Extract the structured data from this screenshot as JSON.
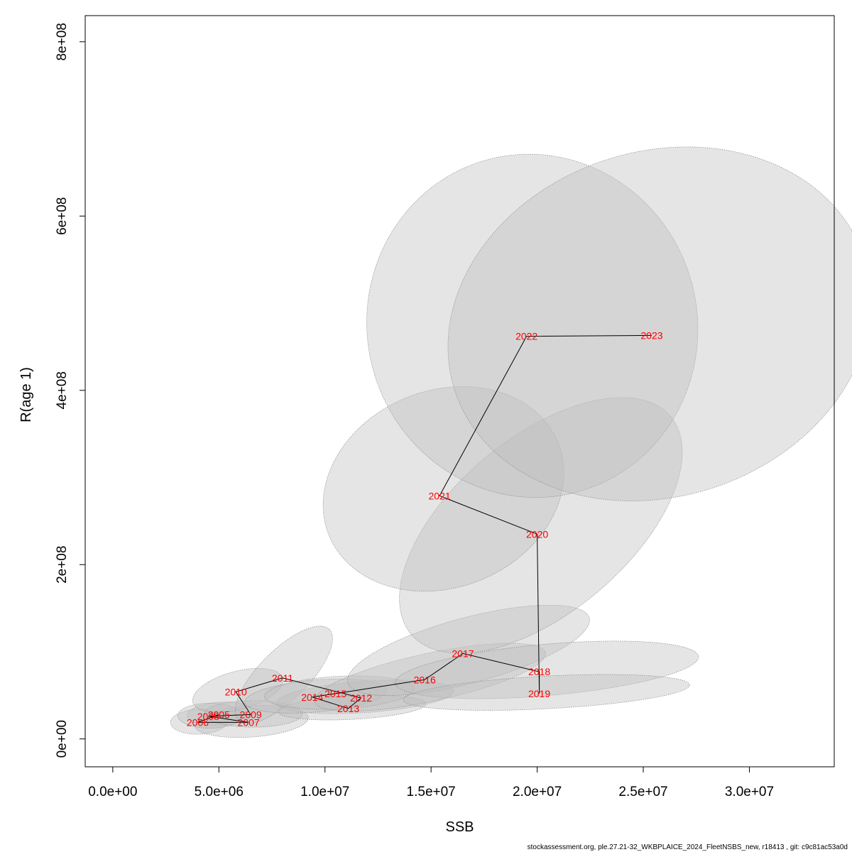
{
  "chart_data": {
    "type": "scatter",
    "xlabel": "SSB",
    "ylabel": "R(age 1)",
    "xlim": [
      -1300000,
      34000000
    ],
    "ylim": [
      -32000000,
      830000000
    ],
    "x_ticks": [
      {
        "value": 0,
        "label": "0.0e+00"
      },
      {
        "value": 5000000,
        "label": "5.0e+06"
      },
      {
        "value": 10000000,
        "label": "1.0e+07"
      },
      {
        "value": 15000000,
        "label": "1.5e+07"
      },
      {
        "value": 20000000,
        "label": "2.0e+07"
      },
      {
        "value": 25000000,
        "label": "2.5e+07"
      },
      {
        "value": 30000000,
        "label": "3.0e+07"
      }
    ],
    "y_ticks": [
      {
        "value": 0,
        "label": "0e+00"
      },
      {
        "value": 200000000,
        "label": "2e+08"
      },
      {
        "value": 400000000,
        "label": "4e+08"
      },
      {
        "value": 600000000,
        "label": "6e+08"
      },
      {
        "value": 800000000,
        "label": "8e+08"
      }
    ],
    "points": [
      {
        "year": "2005",
        "x": 5000000,
        "y": 28000000
      },
      {
        "year": "2006",
        "x": 4000000,
        "y": 19000000
      },
      {
        "year": "2007",
        "x": 6400000,
        "y": 19000000
      },
      {
        "year": "2008",
        "x": 4500000,
        "y": 26000000
      },
      {
        "year": "2009",
        "x": 6500000,
        "y": 28000000
      },
      {
        "year": "2010",
        "x": 5800000,
        "y": 54000000
      },
      {
        "year": "2011",
        "x": 8000000,
        "y": 70000000
      },
      {
        "year": "2012",
        "x": 11700000,
        "y": 47000000
      },
      {
        "year": "2013",
        "x": 11100000,
        "y": 35000000
      },
      {
        "year": "2014",
        "x": 9400000,
        "y": 48000000
      },
      {
        "year": "2015",
        "x": 10500000,
        "y": 52000000
      },
      {
        "year": "2016",
        "x": 14700000,
        "y": 68000000
      },
      {
        "year": "2017",
        "x": 16500000,
        "y": 98000000
      },
      {
        "year": "2018",
        "x": 20100000,
        "y": 77000000
      },
      {
        "year": "2019",
        "x": 20100000,
        "y": 52000000
      },
      {
        "year": "2020",
        "x": 20000000,
        "y": 235000000
      },
      {
        "year": "2021",
        "x": 15400000,
        "y": 279000000
      },
      {
        "year": "2022",
        "x": 19500000,
        "y": 462000000
      },
      {
        "year": "2023",
        "x": 25400000,
        "y": 463000000
      }
    ],
    "ellipse_color": "#bebebe",
    "label_color": "#ff0000"
  },
  "footer": "stockassessment.org, ple.27.21-32_WKBPLAICE_2024_FleetNSBS_new, r18413 , git: c9c81ac53a0d"
}
